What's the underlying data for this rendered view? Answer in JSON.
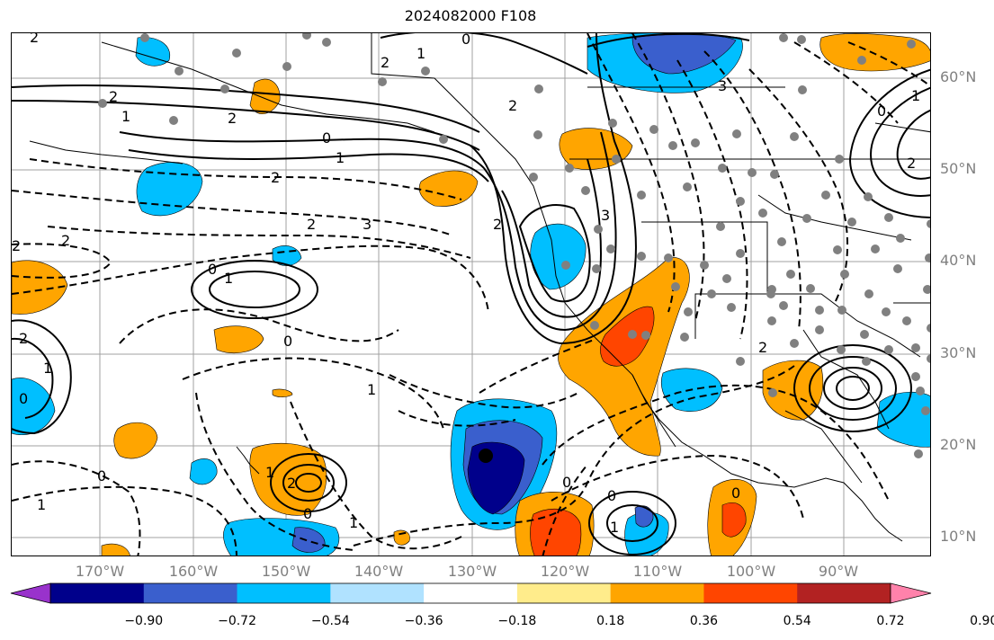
{
  "title": "2024082000 F108",
  "lat_labels": [
    "60°N",
    "50°N",
    "40°N",
    "30°N",
    "20°N",
    "10°N"
  ],
  "lon_labels": [
    "170°W",
    "160°W",
    "150°W",
    "140°W",
    "130°W",
    "120°W",
    "110°W",
    "100°W",
    "90°W"
  ],
  "colorbar": {
    "labels": [
      "−0.90",
      "−0.72",
      "−0.54",
      "−0.36",
      "−0.18",
      "0.18",
      "0.36",
      "0.54",
      "0.72",
      "0.90"
    ],
    "colors": [
      "#9932cc",
      "#00008b",
      "#3a5fcd",
      "#00bfff",
      "#b0e2ff",
      "#ffffff",
      "#ffec8b",
      "#ffa500",
      "#ff4500",
      "#b22222",
      "#ff82ab"
    ]
  },
  "contour_labels": [
    "2",
    "1",
    "2",
    "2",
    "1",
    "0",
    "1",
    "2",
    "3",
    "2",
    "2",
    "0",
    "1",
    "0",
    "2",
    "1",
    "0",
    "1",
    "2",
    "3",
    "2",
    "3",
    "0",
    "2",
    "1",
    "0",
    "1",
    "1",
    "0",
    "1",
    "2",
    "2",
    "1",
    "0"
  ],
  "station_marker": "black dot near 129°W 19°N"
}
